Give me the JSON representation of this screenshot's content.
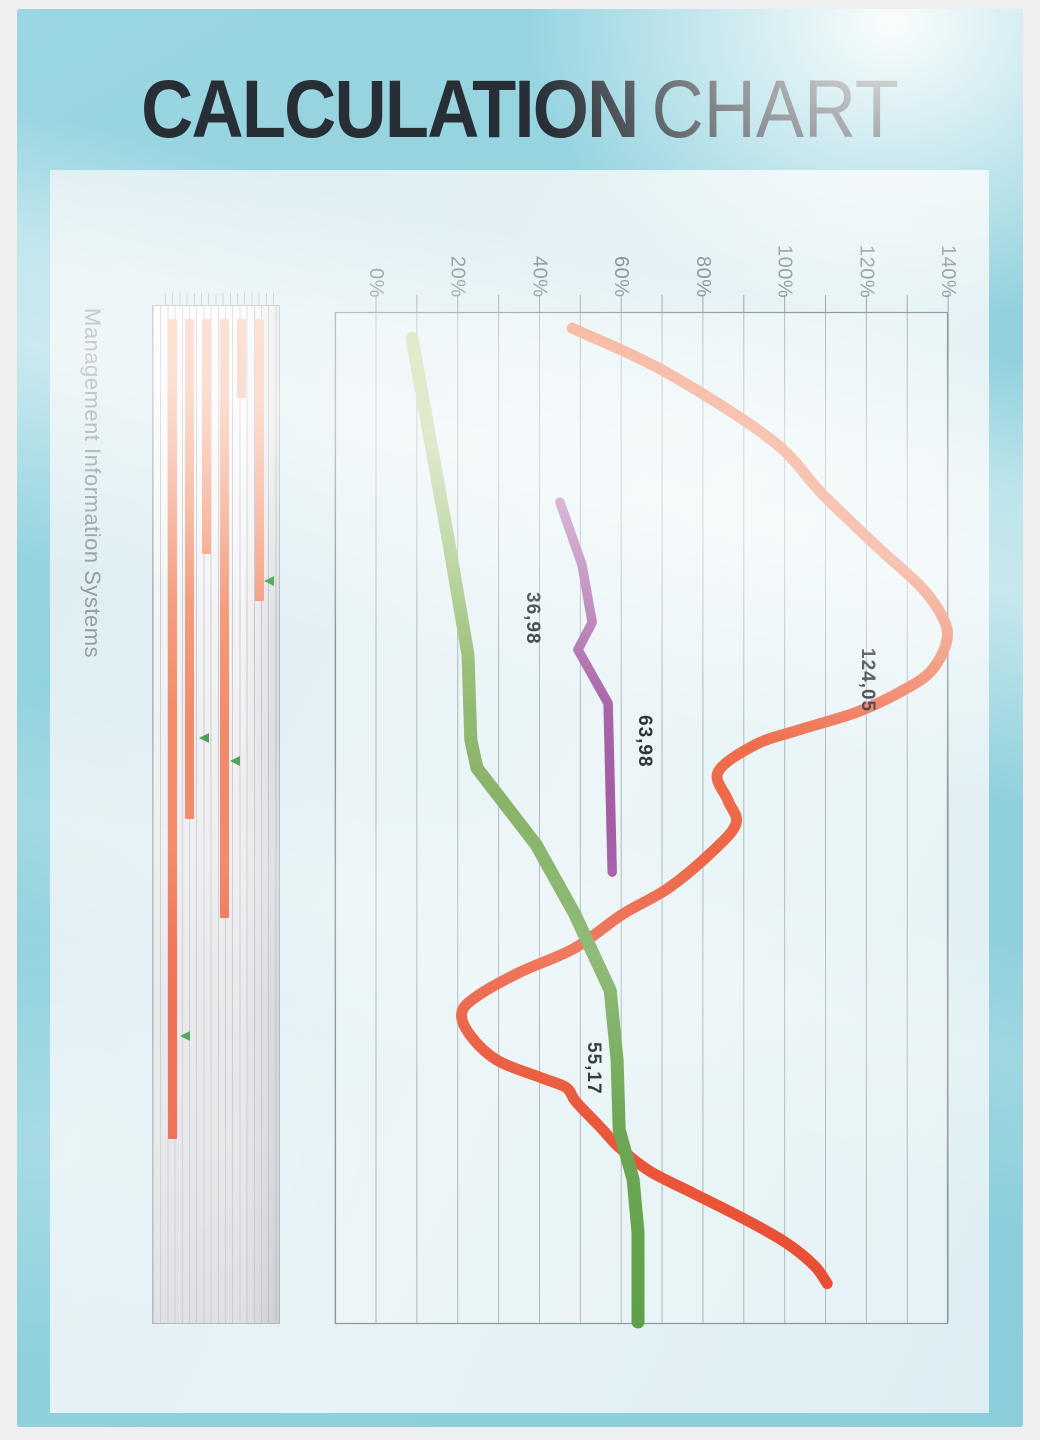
{
  "poster": {
    "title_bold": "CALCULATION",
    "title_light": "CHART",
    "side_label": "Management Information Systems",
    "colors": {
      "frame": "#efefef",
      "background": "#8fd0dc",
      "inner_panel": "#e2f0f4",
      "title": "#272e35",
      "grid": "#98a3aa",
      "plot_border": "#8c979d",
      "axis_text": "#8b939a",
      "annotation_text": "#2d333a",
      "bar_top": "#f9c9b1",
      "bar_mid": "#f0744f",
      "bar_end": "#e84c33",
      "marker_green": "#4aa054",
      "red_start": "#f5a98c",
      "red_mid": "#ee6c4b",
      "red_end": "#e84c33",
      "green_start": "#cfe0ac",
      "green_mid": "#8bb56a",
      "green_end": "#5da048",
      "purple_start": "#c491c3",
      "purple_mid": "#a55fa5",
      "purple_end": "#9a4e9b"
    }
  },
  "chart_data": {
    "type": "line",
    "title": "CALCULATION CHART",
    "orientation": "rotated 90 degrees: value axis runs horizontally across the top, series descend vertically",
    "value_axis": {
      "ticks": [
        {
          "label": "0%",
          "value": 0
        },
        {
          "label": "20%",
          "value": 20
        },
        {
          "label": "40%",
          "value": 40
        },
        {
          "label": "60%",
          "value": 60
        },
        {
          "label": "80%",
          "value": 80
        },
        {
          "label": "100%",
          "value": 100
        },
        {
          "label": "120%",
          "value": 120
        },
        {
          "label": "140%",
          "value": 140
        }
      ],
      "range_pct": [
        -10,
        140
      ],
      "minor_step_pct": 10,
      "grid": true
    },
    "series": [
      {
        "name": "red-line",
        "stroke_width": 11,
        "smooth": true,
        "points": [
          [
            48,
            0.016
          ],
          [
            70.7,
            0.059
          ],
          [
            96.9,
            0.127
          ],
          [
            109.2,
            0.18
          ],
          [
            122.6,
            0.232
          ],
          [
            133.6,
            0.273
          ],
          [
            139,
            0.305
          ],
          [
            139.5,
            0.328
          ],
          [
            135.6,
            0.356
          ],
          [
            128.2,
            0.376
          ],
          [
            117.5,
            0.396
          ],
          [
            103.8,
            0.413
          ],
          [
            92.8,
            0.428
          ],
          [
            83.7,
            0.455
          ],
          [
            86.1,
            0.483
          ],
          [
            88.1,
            0.506
          ],
          [
            82.2,
            0.534
          ],
          [
            71.5,
            0.57
          ],
          [
            60.2,
            0.596
          ],
          [
            48.7,
            0.629
          ],
          [
            35.2,
            0.653
          ],
          [
            25,
            0.676
          ],
          [
            21,
            0.693
          ],
          [
            23,
            0.715
          ],
          [
            29.6,
            0.74
          ],
          [
            40.1,
            0.757
          ],
          [
            46.5,
            0.767
          ],
          [
            48.9,
            0.781
          ],
          [
            54.8,
            0.806
          ],
          [
            59.7,
            0.827
          ],
          [
            67.1,
            0.85
          ],
          [
            77.8,
            0.872
          ],
          [
            89.6,
            0.896
          ],
          [
            100.1,
            0.92
          ],
          [
            107.2,
            0.943
          ],
          [
            110.4,
            0.961
          ]
        ]
      },
      {
        "name": "green-line",
        "stroke_width": 13,
        "smooth": false,
        "points": [
          [
            8.8,
            0.026
          ],
          [
            18.1,
            0.235
          ],
          [
            22.5,
            0.339
          ],
          [
            23.2,
            0.423
          ],
          [
            24.7,
            0.451
          ],
          [
            39.2,
            0.527
          ],
          [
            48.7,
            0.596
          ],
          [
            57.3,
            0.671
          ],
          [
            59,
            0.74
          ],
          [
            59.5,
            0.809
          ],
          [
            62.9,
            0.858
          ],
          [
            64.1,
            0.91
          ],
          [
            64.1,
            0.999
          ]
        ]
      },
      {
        "name": "purple-line",
        "stroke_width": 9.5,
        "smooth": false,
        "points": [
          [
            45,
            0.188
          ],
          [
            50.4,
            0.25
          ],
          [
            52.9,
            0.307
          ],
          [
            49.4,
            0.334
          ],
          [
            56.8,
            0.387
          ],
          [
            57.8,
            0.554
          ]
        ]
      }
    ],
    "annotations": [
      {
        "text": "36,98",
        "series": "green-line",
        "v": 38.4,
        "d": 0.277
      },
      {
        "text": "63,98",
        "series": "purple-line",
        "v": 65.8,
        "d": 0.399
      },
      {
        "text": "124,05",
        "series": "red-line",
        "v": 120.4,
        "d": 0.332
      },
      {
        "text": "55,17",
        "series": "green-line",
        "v": 53.4,
        "d": 0.722
      }
    ],
    "legend": false
  },
  "bars_panel": {
    "description": "decorative rotated bar chart: salmon bars hang from the top of a pinstriped panel",
    "bars": [
      {
        "lane": 0,
        "end_depth": 0.819
      },
      {
        "lane": 1,
        "end_depth": 0.504
      },
      {
        "lane": 2,
        "end_depth": 0.244
      },
      {
        "lane": 3,
        "end_depth": 0.602
      },
      {
        "lane": 4,
        "end_depth": 0.09
      },
      {
        "lane": 5,
        "end_depth": 0.29
      }
    ],
    "markers": [
      {
        "lane": 5,
        "dx": 10,
        "depth": 0.27
      },
      {
        "lane": 1,
        "dx": 15,
        "depth": 0.425
      },
      {
        "lane": 3,
        "dx": 11,
        "depth": 0.447
      },
      {
        "lane": 0,
        "dx": 13,
        "depth": 0.718
      }
    ]
  }
}
